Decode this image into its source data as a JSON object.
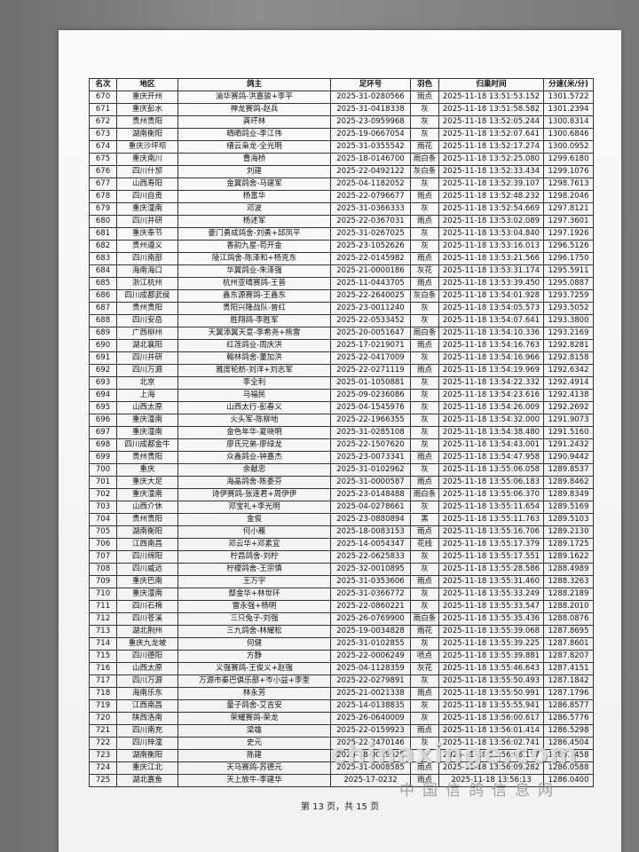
{
  "table": {
    "header": [
      "名次",
      "地区",
      "鸽主",
      "足环号",
      "羽色",
      "归巢时间",
      "分速(米/分)"
    ],
    "rows": [
      [
        "670",
        "重庆开州",
        "渝华赛鸽-洪嘉骏+李平",
        "2025-31-0280566",
        "雨点",
        "2025-11-18 13:51:53.152",
        "1301.5722"
      ],
      [
        "671",
        "重庆彭水",
        "神龙赛鸽-赵兵",
        "2025-31-0418338",
        "灰",
        "2025-11-18 13:51:58.582",
        "1301.2394"
      ],
      [
        "672",
        "贵州贵阳",
        "龚玕林",
        "2025-23-0959968",
        "灰",
        "2025-11-18 13:52:05.244",
        "1300.8314"
      ],
      [
        "673",
        "湖南衡阳",
        "晒晒鸽业-李江伟",
        "2025-19-0667054",
        "灰",
        "2025-11-18 13:52:07.641",
        "1300.6846"
      ],
      [
        "674",
        "重庆沙坪坝",
        "缙云枭龙-全光明",
        "2025-31-0355542",
        "雨花",
        "2025-11-18 13:52:17.274",
        "1300.0952"
      ],
      [
        "675",
        "重庆南川",
        "曹海桥",
        "2025-18-0146700",
        "雨白条",
        "2025-11-18 13:52:25.080",
        "1299.6180"
      ],
      [
        "676",
        "四川什邡",
        "刘建",
        "2025-22-0492122",
        "灰白条",
        "2025-11-18 13:52:33.434",
        "1299.1076"
      ],
      [
        "677",
        "山西寿阳",
        "金翼鸽舍-马建军",
        "2025-04-1182052",
        "灰",
        "2025-11-18 13:52:39.107",
        "1298.7613"
      ],
      [
        "678",
        "四川自贡",
        "杨富华",
        "2025-22-0796677",
        "雨点",
        "2025-11-18 13:52:48.232",
        "1298.2046"
      ],
      [
        "679",
        "重庆潼南",
        "邓波",
        "2025-31-0366333",
        "灰",
        "2025-11-18 13:52:54.669",
        "1297.8121"
      ],
      [
        "680",
        "四川井研",
        "杨述军",
        "2025-22-0367031",
        "雨点",
        "2025-11-18 13:53:02.089",
        "1297.3601"
      ],
      [
        "681",
        "重庆奉节",
        "夔门勇成鸽舍-刘勇+邱凤平",
        "2025-31-0267025",
        "灰",
        "2025-11-18 13:53:04.840",
        "1297.1926"
      ],
      [
        "682",
        "贵州遵义",
        "香韵九星-苟开金",
        "2025-23-1052626",
        "灰",
        "2025-11-18 13:53:16.013",
        "1296.5126"
      ],
      [
        "683",
        "四川南部",
        "陵江鸽舍-陈泽和+杨克东",
        "2025-22-0145982",
        "雨点",
        "2025-11-18 13:53:21.566",
        "1296.1750"
      ],
      [
        "684",
        "海南海口",
        "华翼鸽业-朱泽强",
        "2025-21-0000186",
        "灰花",
        "2025-11-18 13:53:31.174",
        "1295.5911"
      ],
      [
        "685",
        "浙江杭州",
        "杭州亚晴赛鸽-王普",
        "2025-11-0443705",
        "雨点",
        "2025-11-18 13:53:39.450",
        "1295.0887"
      ],
      [
        "686",
        "四川成都武侯",
        "鑫东源赛鸽-王鑫东",
        "2025-22-2640025",
        "灰白条",
        "2025-11-18 13:54:01.928",
        "1293.7259"
      ],
      [
        "687",
        "贵州贵阳",
        "贵阳兴隆战队-曾红",
        "2025-23-0011240",
        "灰",
        "2025-11-18 13:54:05.573",
        "1293.5052"
      ],
      [
        "688",
        "四川安岳",
        "胜翔鸽-李胜军",
        "2025-22-0533452",
        "灰",
        "2025-11-18 13:54:07.641",
        "1293.3800"
      ],
      [
        "689",
        "广西柳州",
        "天翼添翼天意-李希尧+熊雷",
        "2025-20-0051647",
        "雨白条",
        "2025-11-18 13:54:10.336",
        "1293.2169"
      ],
      [
        "690",
        "湖北襄阳",
        "红莲鸽业-周庆洪",
        "2025-17-0219071",
        "雨点",
        "2025-11-18 13:54:16.763",
        "1292.8281"
      ],
      [
        "691",
        "四川井研",
        "翰林鸽舍-董加洪",
        "2025-22-0417009",
        "灰",
        "2025-11-18 13:54:16.966",
        "1292.8158"
      ],
      [
        "692",
        "四川万源",
        "雅度轮舫-刘洋+刘志军",
        "2025-22-0271119",
        "雨点",
        "2025-11-18 13:54:19.969",
        "1292.6342"
      ],
      [
        "693",
        "北京",
        "李全利",
        "2025-01-1050881",
        "灰",
        "2025-11-18 13:54:22.332",
        "1292.4914"
      ],
      [
        "694",
        "上海",
        "马福民",
        "2025-09-0236086",
        "灰",
        "2025-11-18 13:54:23.616",
        "1292.4138"
      ],
      [
        "695",
        "山西太原",
        "山西太行-彭春义",
        "2025-04-1545976",
        "灰",
        "2025-11-18 13:54:26.009",
        "1292.2692"
      ],
      [
        "696",
        "重庆潼南",
        "火头军-陈柳地",
        "2025-22-1966355",
        "灰",
        "2025-11-18 13:54:32.000",
        "1291.9073"
      ],
      [
        "697",
        "重庆潼南",
        "金色年华-夏晓明",
        "2025-31-0285108",
        "灰",
        "2025-11-18 13:54:38.480",
        "1291.5160"
      ],
      [
        "698",
        "四川成都金牛",
        "廖氏兄弟-廖绿龙",
        "2025-22-1507620",
        "灰",
        "2025-11-18 13:54:43.001",
        "1291.2432"
      ],
      [
        "699",
        "贵州贵阳",
        "众鑫鸽业-钟嘉杰",
        "2025-23-0073341",
        "雨点",
        "2025-11-18 13:54:47.958",
        "1290.9442"
      ],
      [
        "700",
        "重庆",
        "余献忠",
        "2025-31-0102962",
        "灰",
        "2025-11-18 13:55:06.058",
        "1289.8537"
      ],
      [
        "701",
        "重庆大足",
        "海晶鸽舍-陈委芬",
        "2025-31-0000587",
        "雨点",
        "2025-11-18 13:55:06.183",
        "1289.8462"
      ],
      [
        "702",
        "重庆潼南",
        "诗伊赛鸽-张连君+周伊伊",
        "2025-23-0148488",
        "雨白条",
        "2025-11-18 13:55:06.370",
        "1289.8349"
      ],
      [
        "703",
        "山西介休",
        "邓宝礼+李光明",
        "2025-04-0278661",
        "灰",
        "2025-11-18 13:55:11.654",
        "1289.5169"
      ],
      [
        "704",
        "贵州贵阳",
        "金俊",
        "2025-23-0880894",
        "黑",
        "2025-11-18 13:55:11.763",
        "1289.5103"
      ],
      [
        "705",
        "湖南衡阳",
        "何小雁",
        "2025-18-0083153",
        "雨点",
        "2025-11-18 13:55:16.706",
        "1289.2130"
      ],
      [
        "706",
        "江西南昌",
        "邓云华+邓素宜",
        "2025-14-0054347",
        "花线",
        "2025-11-18 13:55:17.379",
        "1289.1725"
      ],
      [
        "707",
        "四川绵阳",
        "柠昌鸽舍-刘柠",
        "2025-22-0625833",
        "灰",
        "2025-11-18 13:55:17.551",
        "1289.1622"
      ],
      [
        "708",
        "四川威远",
        "柠檬鸽舍-王宗慎",
        "2025-32-0010895",
        "灰",
        "2025-11-18 13:55:28.586",
        "1288.4989"
      ],
      [
        "709",
        "重庆巴南",
        "王万宇",
        "2025-31-0353606",
        "雨点",
        "2025-11-18 13:55:31.460",
        "1288.3263"
      ],
      [
        "710",
        "重庆潼南",
        "鄢金华+林世环",
        "2025-31-0366772",
        "灰",
        "2025-11-18 13:55:33.249",
        "1288.2189"
      ],
      [
        "711",
        "四川石棉",
        "雷永强+杨明",
        "2025-22-0860221",
        "灰",
        "2025-11-18 13:55:33.547",
        "1288.2010"
      ],
      [
        "712",
        "四川苍溪",
        "三只兔子-刘强",
        "2025-26-0769900",
        "雨白条",
        "2025-11-18 13:55:35.436",
        "1288.0876"
      ],
      [
        "713",
        "湖北荆州",
        "三九鸽舍-林耀松",
        "2025-19-0034828",
        "雨花",
        "2025-11-18 13:55:39.068",
        "1287.8695"
      ],
      [
        "714",
        "重庆九龙坡",
        "何健",
        "2025-31-0102855",
        "灰",
        "2025-11-18 13:55:39.225",
        "1287.8601"
      ],
      [
        "715",
        "四川德阳",
        "方静",
        "2025-22-0006249",
        "喷点",
        "2025-11-18 13:55:39.881",
        "1287.8207"
      ],
      [
        "716",
        "山西太原",
        "义强赛鸽-王俊义+赵强",
        "2025-04-1128359",
        "灰花",
        "2025-11-18 13:55:46.643",
        "1287.4151"
      ],
      [
        "717",
        "四川万源",
        "万源市秦巴俱乐部+岑小益+李奎",
        "2025-22-0279891",
        "灰",
        "2025-11-18 13:55:50.493",
        "1287.1842"
      ],
      [
        "718",
        "海南乐东",
        "林永芳",
        "2025-21-0021338",
        "雨点",
        "2025-11-18 13:55:50.991",
        "1287.1796"
      ],
      [
        "719",
        "江西南昌",
        "量子鸽舍-艾吉安",
        "2025-14-0138835",
        "灰",
        "2025-11-18 13:55:55.941",
        "1286.8577"
      ],
      [
        "720",
        "陕西洛南",
        "荣耀赛鸽-荣龙",
        "2025-26-0640009",
        "灰",
        "2025-11-18 13:56:00.617",
        "1286.5776"
      ],
      [
        "721",
        "四川南充",
        "梁雄",
        "2025-22-0159923",
        "雨点",
        "2025-11-18 13:56:01.414",
        "1286.5298"
      ],
      [
        "722",
        "四川梓潼",
        "史元",
        "2025-22-2470146",
        "灰",
        "2025-11-18 13:56:02.741",
        "1286.4504"
      ],
      [
        "723",
        "湖南衡阳",
        "陈建",
        "2025-18-0019526",
        "灰",
        "2025-11-18 13:56:06.157",
        "1286.2458"
      ],
      [
        "724",
        "重庆江北",
        "天马赛鸽-苏德元",
        "2025-31-0008585",
        "雨点",
        "2025-11-18 13:56:09.282",
        "1286.0588"
      ],
      [
        "725",
        "湖北嘉鱼",
        "天上放牛-李建华",
        "2025-17-0232",
        "雨点",
        "2025-11-18 13:56:13",
        "1286.0400"
      ]
    ]
  },
  "footer": "第 13 页，共 15 页",
  "watermark": {
    "site": "chinaxinge.com",
    "name": "中国信鸽信息网"
  }
}
